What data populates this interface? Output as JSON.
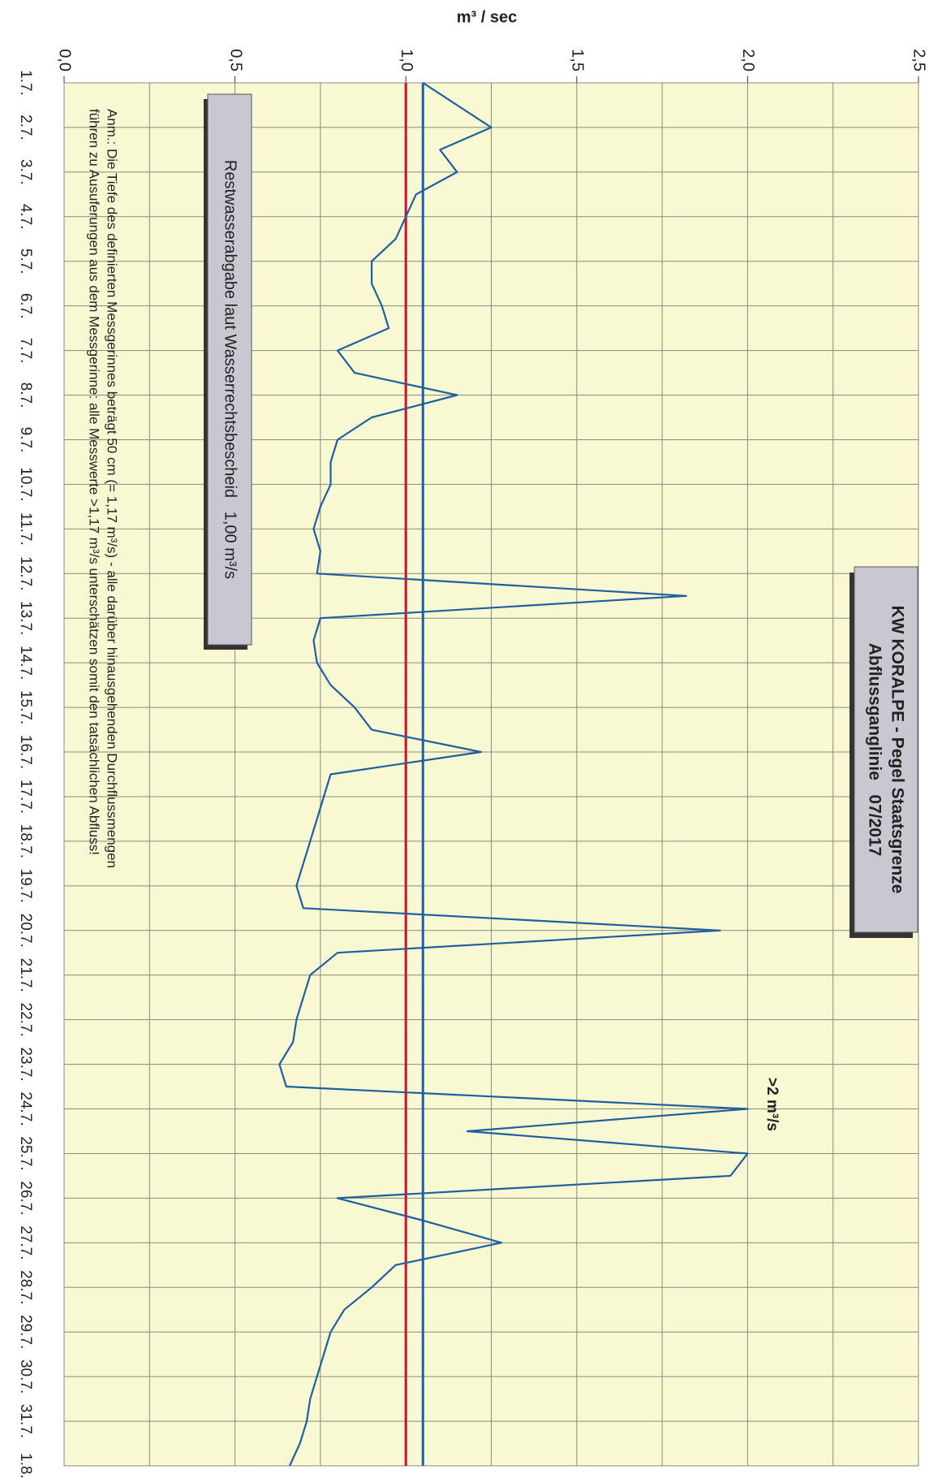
{
  "chart_data": {
    "type": "line",
    "title": "KW KORALPE - Pegel Staatsgrenze",
    "subtitle": "Abflussganglinie   07/2017",
    "y_label": "m³ / sec",
    "categories": [
      "1.7.",
      null,
      "2.7.",
      null,
      "3.7.",
      null,
      "4.7.",
      null,
      "5.7.",
      null,
      "6.7.",
      null,
      "7.7.",
      null,
      "8.7.",
      null,
      "9.7.",
      null,
      "10.7.",
      null,
      "11.7.",
      null,
      "12.7.",
      null,
      "13.7.",
      null,
      "14.7.",
      null,
      "15.7.",
      null,
      "16.7.",
      null,
      "17.7.",
      null,
      "18.7.",
      null,
      "19.7.",
      null,
      "20.7.",
      null,
      "21.7.",
      null,
      "22.7.",
      null,
      "23.7.",
      null,
      "24.7.",
      null,
      "25.7.",
      null,
      "26.7.",
      null,
      "27.7.",
      null,
      "28.7.",
      null,
      "29.7.",
      null,
      "30.7.",
      null,
      "31.7.",
      null,
      "1.8."
    ],
    "values": [
      1.05,
      1.15,
      1.25,
      1.1,
      1.15,
      1.03,
      1.0,
      0.97,
      0.9,
      0.9,
      0.93,
      0.95,
      0.8,
      0.85,
      1.15,
      0.9,
      0.8,
      0.78,
      0.78,
      0.75,
      0.73,
      0.75,
      0.74,
      1.82,
      0.75,
      0.73,
      0.74,
      0.78,
      0.85,
      0.9,
      1.22,
      0.78,
      0.76,
      0.74,
      0.72,
      0.7,
      0.68,
      0.7,
      1.92,
      0.8,
      0.72,
      0.7,
      0.68,
      0.67,
      0.63,
      0.65,
      2.0,
      1.18,
      2.0,
      1.95,
      0.8,
      1.05,
      1.28,
      0.97,
      0.9,
      0.82,
      0.78,
      0.76,
      0.74,
      0.72,
      0.71,
      0.69,
      0.66
    ],
    "color": "#1f5fa0",
    "ylim": [
      0,
      2.5
    ],
    "yticks": [
      {
        "value": 0,
        "label": "0,0"
      },
      {
        "value": 0.5,
        "label": "0,5"
      },
      {
        "value": 1,
        "label": "1,0"
      },
      {
        "value": 1.5,
        "label": "1,5"
      },
      {
        "value": 2,
        "label": "2,0"
      },
      {
        "value": 2.5,
        "label": "2,5"
      }
    ],
    "yminor": [
      0.25,
      0.75,
      1.25,
      1.75,
      2.25
    ],
    "grid": true,
    "reference_lines": [
      {
        "value": 1.0,
        "color": "#d0102a",
        "label": "Restwasserabgabe laut Wasserrechtsbescheid   1,00 m³/s"
      },
      {
        "value": 1.05,
        "color": "#1f5fa0"
      }
    ],
    "annotations": [
      ">2 m³/s"
    ],
    "note": [
      "Anm.: Die Tiefe des definierten Messgerinnes beträgt 50 cm (= 1,17 m³/s) - alle darüber hinausgehenden Durchflussmengen",
      "führen zu Ausuferungen aus dem Messgerinne: alle Messwerte >1,17 m³/s unterschätzen somit den tatsächlichen Abfluss!"
    ]
  }
}
